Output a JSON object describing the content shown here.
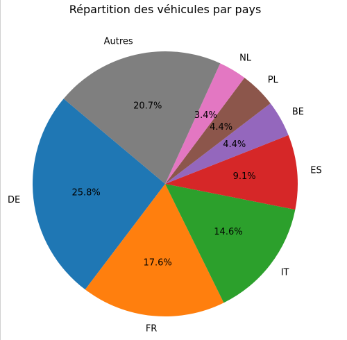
{
  "chart_data": {
    "type": "pie",
    "title": "Répartition des véhicules par pays",
    "slices": [
      {
        "label": "DE",
        "value": 25.8,
        "value_label": "25.8%",
        "color": "#1f77b4"
      },
      {
        "label": "FR",
        "value": 17.6,
        "value_label": "17.6%",
        "color": "#ff7f0e"
      },
      {
        "label": "IT",
        "value": 14.6,
        "value_label": "14.6%",
        "color": "#2ca02c"
      },
      {
        "label": "ES",
        "value": 9.1,
        "value_label": "9.1%",
        "color": "#d62728"
      },
      {
        "label": "BE",
        "value": 4.4,
        "value_label": "4.4%",
        "color": "#9467bd"
      },
      {
        "label": "PL",
        "value": 4.4,
        "value_label": "4.4%",
        "color": "#8c564b"
      },
      {
        "label": "NL",
        "value": 3.4,
        "value_label": "3.4%",
        "color": "#e377c2"
      },
      {
        "label": "Autres",
        "value": 20.7,
        "value_label": "20.7%",
        "color": "#7f7f7f"
      }
    ],
    "start_angle_deg": 140,
    "direction": "counterclockwise",
    "legend": "none"
  }
}
